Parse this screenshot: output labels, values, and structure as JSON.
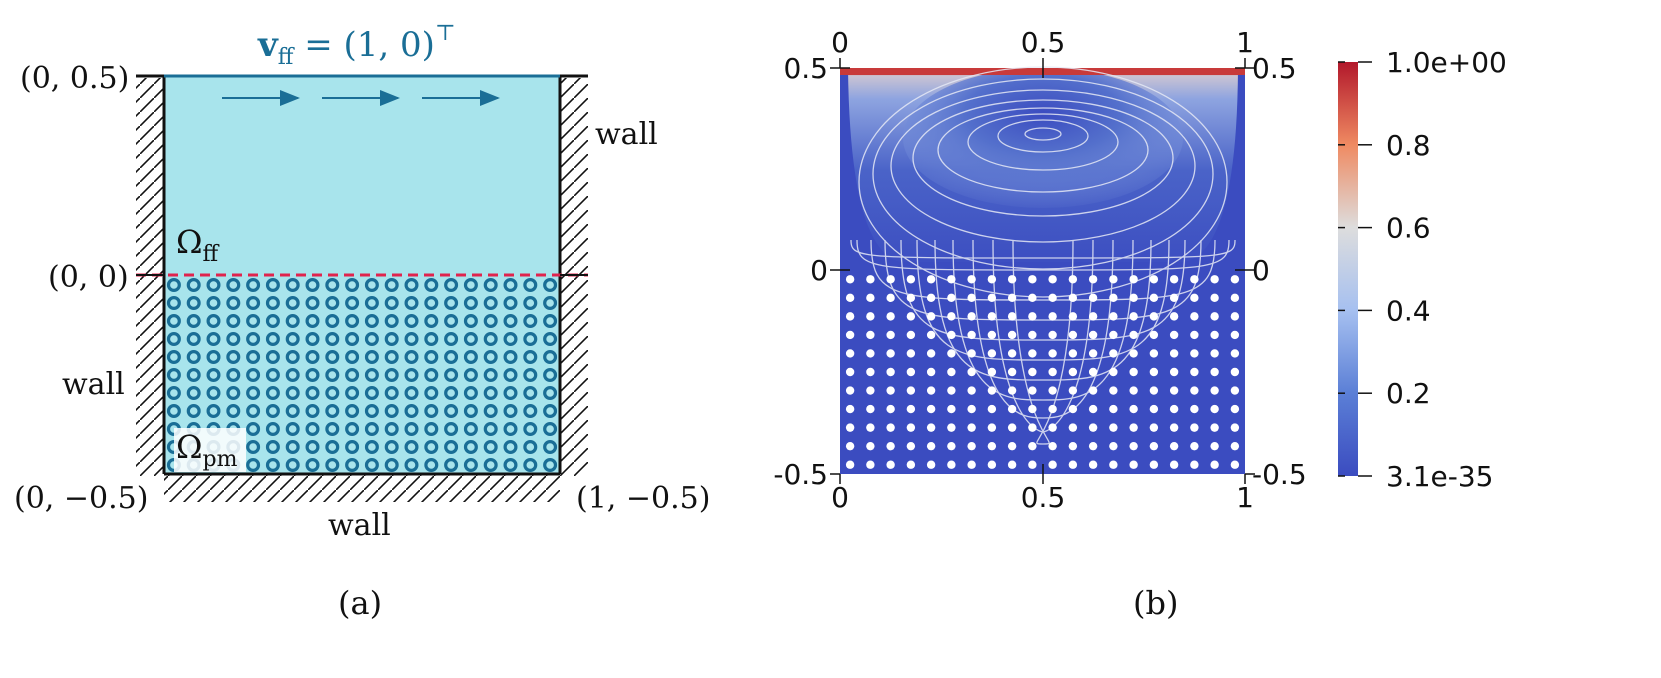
{
  "panel_a": {
    "velocity_label": "v",
    "velocity_sub": "ff",
    "velocity_value": " = (1, 0)",
    "velocity_sup": "⊤",
    "omega_ff": "Ω",
    "omega_ff_sub": "ff",
    "omega_pm": "Ω",
    "omega_pm_sub": "pm",
    "coord_top_left": "(0, 0.5)",
    "coord_mid_left": "(0, 0)",
    "coord_bottom_left": "(0, −0.5)",
    "coord_bottom_right": "(1, −0.5)",
    "wall_right": "wall",
    "wall_left": "wall",
    "wall_bottom": "wall",
    "caption": "(a)",
    "grid_rows": 11,
    "grid_cols": 20,
    "colors": {
      "fluid": "#a8e4ec",
      "obstacle": "#1a6e96",
      "interface": "#e0234d"
    }
  },
  "panel_b": {
    "top_ticks": [
      "0",
      "0.5",
      "1"
    ],
    "bottom_ticks": [
      "0",
      "0.5",
      "1"
    ],
    "left_ticks": [
      "0.5",
      "0",
      "-0.5"
    ],
    "right_ticks": [
      "0.5",
      "0",
      "-0.5"
    ],
    "caption": "(b)",
    "obstacle_rows": 11,
    "obstacle_cols": 20,
    "colorbar": {
      "labels": [
        "1.0e+00",
        "0.8",
        "0.6",
        "0.4",
        "0.2",
        "3.1e-35"
      ],
      "max": 1.0,
      "min": 3.1e-35,
      "colors": [
        "#b2182b",
        "#ef8a62",
        "#dddddd",
        "#a6c0f0",
        "#5b7fd6",
        "#3b4cc0"
      ]
    }
  }
}
